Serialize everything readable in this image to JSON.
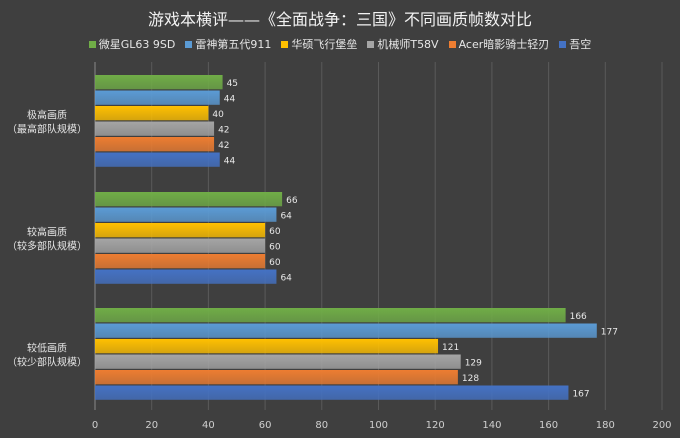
{
  "chart_data": {
    "type": "bar",
    "orientation": "horizontal",
    "title": "游戏本横评——《全面战争：三国》不同画质帧数对比",
    "categories": [
      {
        "line1": "极高画质",
        "line2": "（最高部队规模）"
      },
      {
        "line1": "较高画质",
        "line2": "（较多部队规模）"
      },
      {
        "line1": "较低画质",
        "line2": "（较少部队规模）"
      }
    ],
    "series": [
      {
        "name": "微星GL63 9SD",
        "color": "#70ad47",
        "values": [
          45,
          66,
          166
        ]
      },
      {
        "name": "雷神第五代911",
        "color": "#5b9bd5",
        "values": [
          44,
          64,
          177
        ]
      },
      {
        "name": "华硕飞行堡垒",
        "color": "#ffc000",
        "values": [
          40,
          60,
          121
        ]
      },
      {
        "name": "机械师T58V",
        "color": "#a5a5a5",
        "values": [
          42,
          60,
          129
        ]
      },
      {
        "name": "Acer暗影骑士轻刃",
        "color": "#ed7d31",
        "values": [
          42,
          60,
          128
        ]
      },
      {
        "name": "吾空",
        "color": "#4472c4",
        "values": [
          44,
          64,
          167
        ]
      }
    ],
    "xlim": [
      0,
      200
    ],
    "xticks": [
      0,
      20,
      40,
      60,
      80,
      100,
      120,
      140,
      160,
      180,
      200
    ],
    "xlabel": "",
    "ylabel": "",
    "grid": true,
    "legend": "top"
  }
}
